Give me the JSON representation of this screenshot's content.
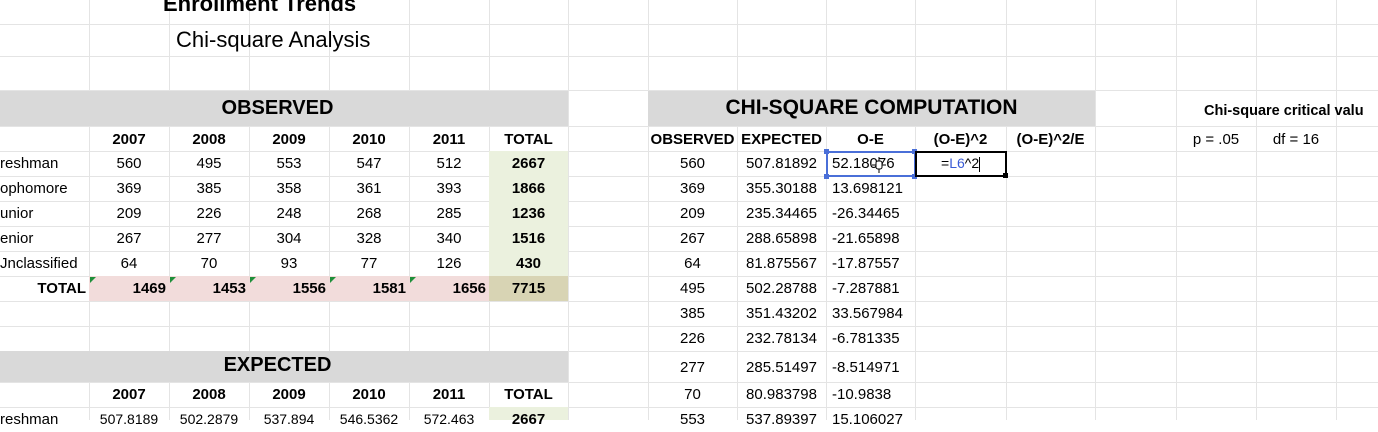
{
  "title": "Enrollment Trends",
  "subtitle": "Chi-square Analysis",
  "observed": {
    "header": "OBSERVED",
    "columns": [
      "2007",
      "2008",
      "2009",
      "2010",
      "2011",
      "TOTAL"
    ],
    "rows": [
      {
        "label": "reshman",
        "values": [
          "560",
          "495",
          "553",
          "547",
          "512",
          "2667"
        ]
      },
      {
        "label": "ophomore",
        "values": [
          "369",
          "385",
          "358",
          "361",
          "393",
          "1866"
        ]
      },
      {
        "label": "unior",
        "values": [
          "209",
          "226",
          "248",
          "268",
          "285",
          "1236"
        ]
      },
      {
        "label": "enior",
        "values": [
          "267",
          "277",
          "304",
          "328",
          "340",
          "1516"
        ]
      },
      {
        "label": "Jnclassified",
        "values": [
          "64",
          "70",
          "93",
          "77",
          "126",
          "430"
        ]
      }
    ],
    "total_row": {
      "label": "TOTAL",
      "values": [
        "1469",
        "1453",
        "1556",
        "1581",
        "1656",
        "7715"
      ]
    }
  },
  "expected": {
    "header": "EXPECTED",
    "columns": [
      "2007",
      "2008",
      "2009",
      "2010",
      "2011",
      "TOTAL"
    ],
    "rows": [
      {
        "label": "reshman",
        "values": [
          "507.8189",
          "502.2879",
          "537.894",
          "546.5362",
          "572.463",
          "2667"
        ]
      }
    ]
  },
  "chi": {
    "header": "CHI-SQUARE COMPUTATION",
    "columns": [
      "OBSERVED",
      "EXPECTED",
      "O-E",
      "(O-E)^2",
      "(O-E)^2/E"
    ],
    "rows": [
      {
        "observed": "560",
        "expected": "507.81892",
        "oe": "52.18",
        "oe_tail": "076"
      },
      {
        "observed": "369",
        "expected": "355.30188",
        "oe": "13.698121"
      },
      {
        "observed": "209",
        "expected": "235.34465",
        "oe": "-26.34465"
      },
      {
        "observed": "267",
        "expected": "288.65898",
        "oe": "-21.65898"
      },
      {
        "observed": "64",
        "expected": "81.875567",
        "oe": "-17.87557"
      },
      {
        "observed": "495",
        "expected": "502.28788",
        "oe": "-7.287881"
      },
      {
        "observed": "385",
        "expected": "351.43202",
        "oe": "33.567984"
      },
      {
        "observed": "226",
        "expected": "232.78134",
        "oe": "-6.781335"
      },
      {
        "observed": "277",
        "expected": "285.51497",
        "oe": "-8.514971"
      },
      {
        "observed": "70",
        "expected": "80.983798",
        "oe": "-10.9838"
      },
      {
        "observed": "553",
        "expected": "537.89397",
        "oe": "15.106027"
      }
    ],
    "editing_formula": {
      "prefix": "=",
      "ref": "L6",
      "suffix": "^2"
    }
  },
  "critical": {
    "header": "Chi-square critical valu",
    "p_label": "p = .05",
    "df_label": "df = 16"
  },
  "colors": {
    "band_gray": "#d9d9d9",
    "total_col_green": "#ebf1de",
    "total_row_pink": "#f2dcdb",
    "grand_total_olive": "#d8d4b4",
    "selection_blue": "#4a6fd8",
    "comment_triangle_green": "#1e8f3a"
  }
}
